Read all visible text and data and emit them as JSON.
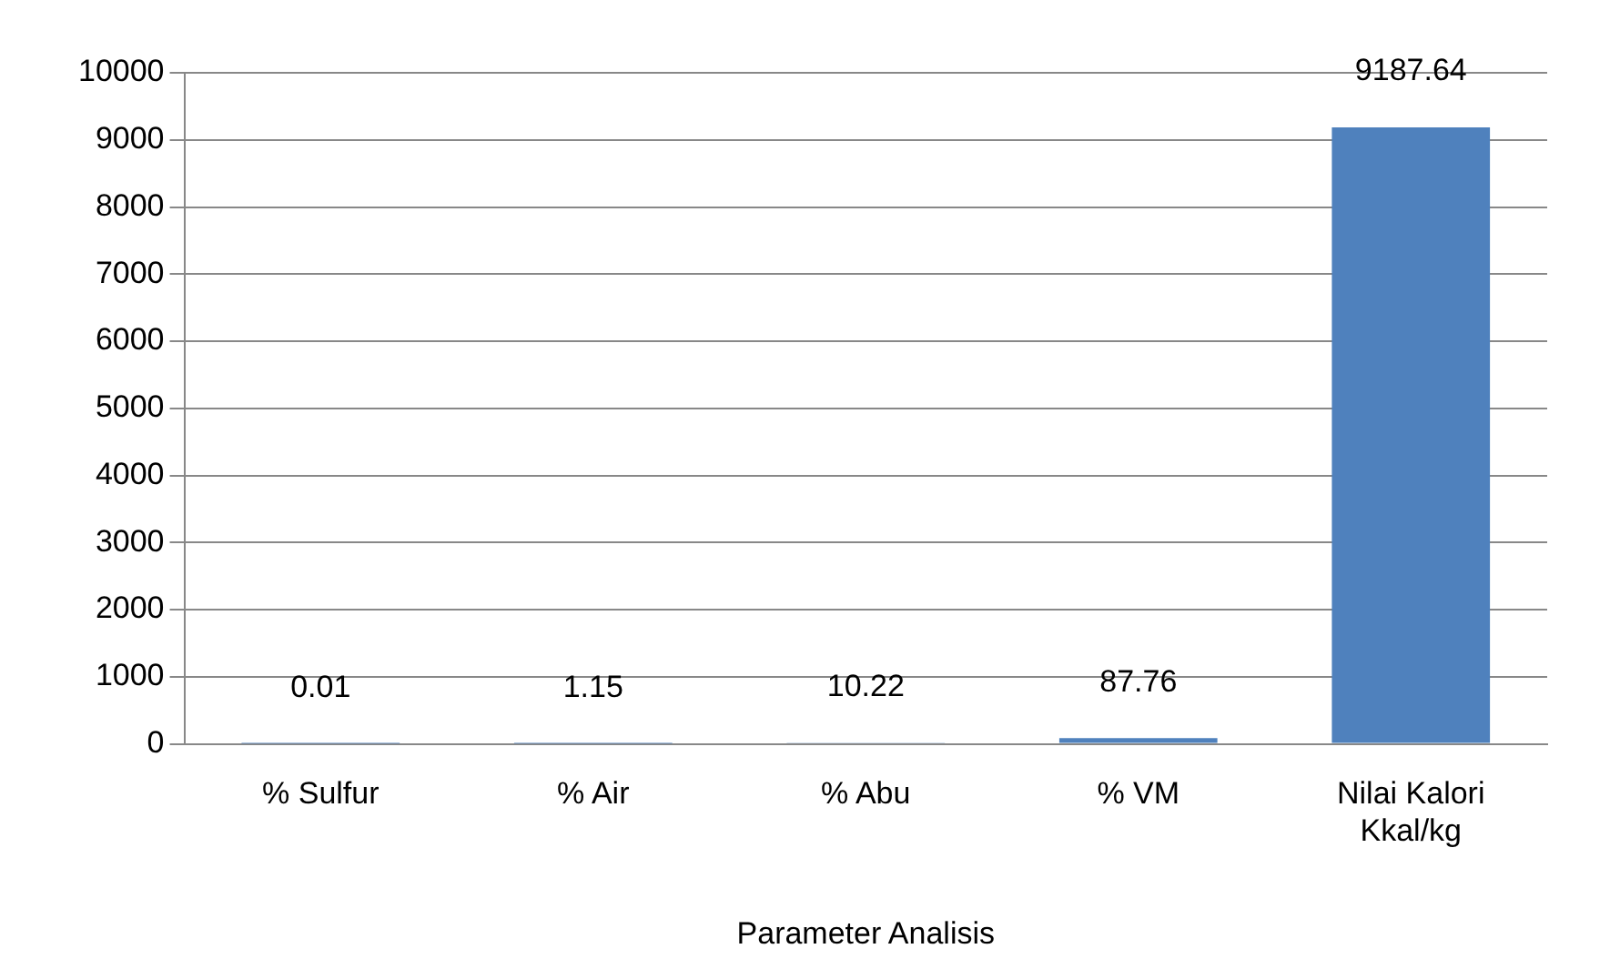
{
  "chart_data": {
    "type": "bar",
    "xlabel": "Parameter Analisis",
    "categories": [
      "% Sulfur",
      "% Air",
      "% Abu",
      "% VM",
      "Nilai Kalori Kkal/kg"
    ],
    "values": [
      0.01,
      1.15,
      10.22,
      87.76,
      9187.64
    ],
    "color": "#4f81bd",
    "ylim": [
      0,
      10000
    ],
    "yticks": [
      0,
      1000,
      2000,
      3000,
      4000,
      5000,
      6000,
      7000,
      8000,
      9000,
      10000
    ],
    "grid": "y",
    "legend": false,
    "data_labels": true
  }
}
